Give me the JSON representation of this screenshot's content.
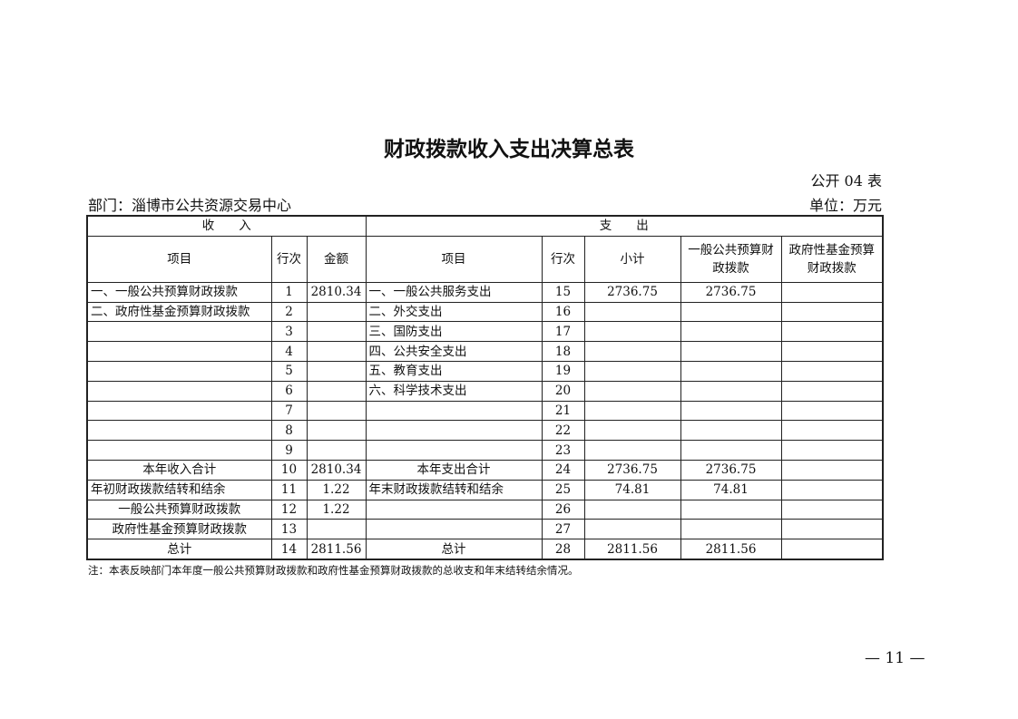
{
  "title": "财政拨款收入支出决算总表",
  "form_no": "公开 04 表",
  "department": "部门：淄博市公共资源交易中心",
  "unit": "单位：万元",
  "headers": {
    "income": "收　　入",
    "expense": "支　　出",
    "income_item": "项目",
    "income_line": "行次",
    "income_amount": "金额",
    "expense_item": "项目",
    "expense_line": "行次",
    "subtotal": "小计",
    "general_budget": "一般公共预算财政拨款",
    "fund_budget": "政府性基金预算财政拨款"
  },
  "rows": [
    [
      "一、一般公共预算财政拨款",
      "1",
      "2810.34",
      "一、一般公共服务支出",
      "15",
      "2736.75",
      "2736.75",
      ""
    ],
    [
      "二、政府性基金预算财政拨款",
      "2",
      "",
      "二、外交支出",
      "16",
      "",
      "",
      ""
    ],
    [
      "",
      "3",
      "",
      "三、国防支出",
      "17",
      "",
      "",
      ""
    ],
    [
      "",
      "4",
      "",
      "四、公共安全支出",
      "18",
      "",
      "",
      ""
    ],
    [
      "",
      "5",
      "",
      "五、教育支出",
      "19",
      "",
      "",
      ""
    ],
    [
      "",
      "6",
      "",
      "六、科学技术支出",
      "20",
      "",
      "",
      ""
    ],
    [
      "",
      "7",
      "",
      "",
      "21",
      "",
      "",
      ""
    ],
    [
      "",
      "8",
      "",
      "",
      "22",
      "",
      "",
      ""
    ],
    [
      "",
      "9",
      "",
      "",
      "23",
      "",
      "",
      ""
    ],
    [
      "本年收入合计",
      "10",
      "2810.34",
      "本年支出合计",
      "24",
      "2736.75",
      "2736.75",
      ""
    ],
    [
      "年初财政拨款结转和结余",
      "11",
      "1.22",
      "年末财政拨款结转和结余",
      "25",
      "74.81",
      "74.81",
      ""
    ],
    [
      "一般公共预算财政拨款",
      "12",
      "1.22",
      "",
      "26",
      "",
      "",
      ""
    ],
    [
      "政府性基金预算财政拨款",
      "13",
      "",
      "",
      "27",
      "",
      "",
      ""
    ],
    [
      "总计",
      "14",
      "2811.56",
      "总计",
      "28",
      "2811.56",
      "2811.56",
      ""
    ]
  ],
  "note": "注：本表反映部门本年度一般公共预算财政拨款和政府性基金预算财政拨款的总收支和年末结转结余情况。",
  "page_number": "— 11 —"
}
